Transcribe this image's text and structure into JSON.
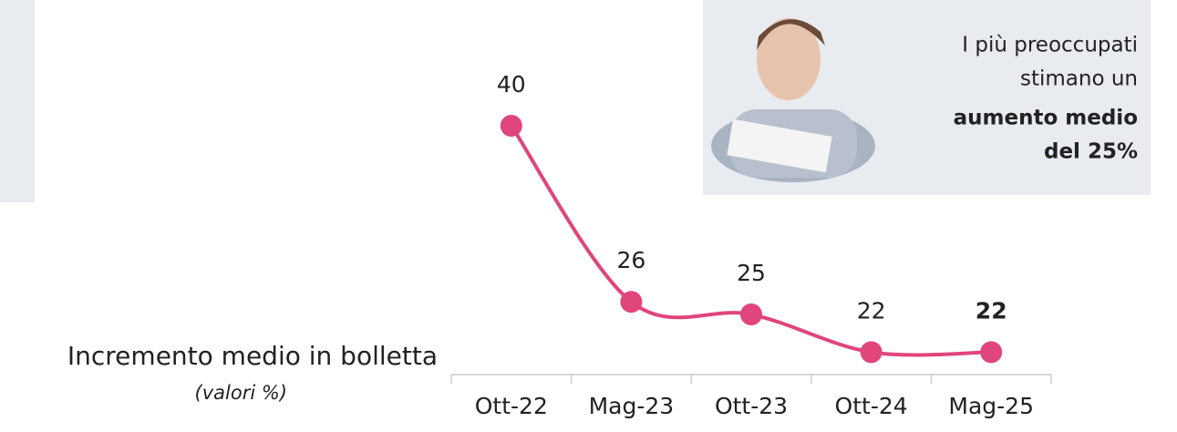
{
  "chart_data": {
    "type": "line",
    "x_label": "Incremento medio in bolletta",
    "x_sublabel": "(valori %)",
    "categories": [
      "Ott-22",
      "Mag-23",
      "Ott-23",
      "Ott-24",
      "Mag-25"
    ],
    "series": [
      {
        "name": "Incremento medio",
        "color": "#e0457b",
        "values": [
          40,
          26,
          25,
          22,
          22
        ]
      }
    ],
    "ylim": [
      20,
      40
    ],
    "highlight_index": 4,
    "callout": {
      "lines": [
        "I più preoccupati",
        "stimano un"
      ],
      "bold_lines": [
        "aumento medio",
        "del 25%"
      ]
    }
  }
}
